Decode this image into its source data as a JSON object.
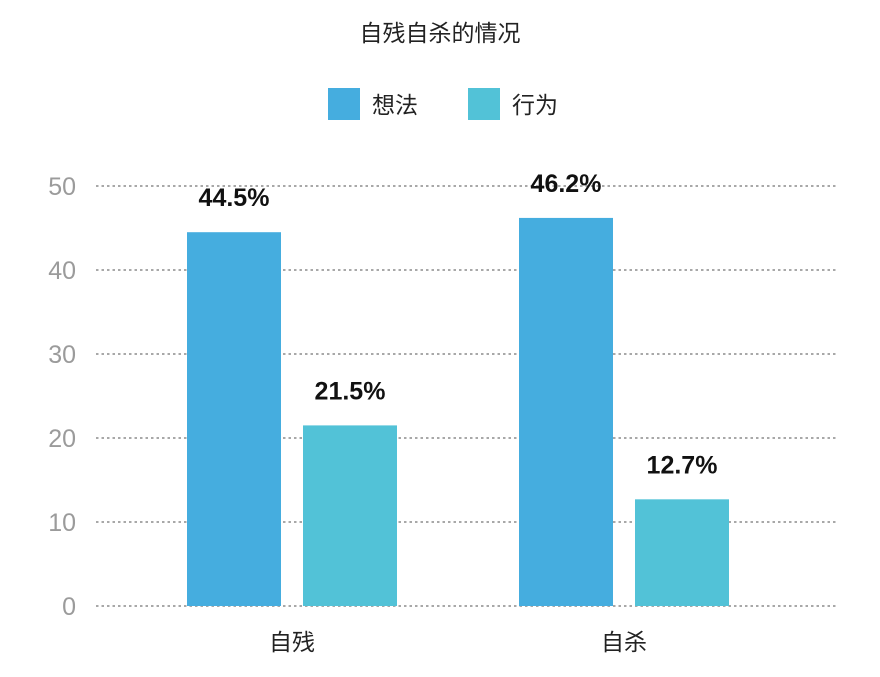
{
  "chart_data": {
    "type": "bar",
    "title": "自残自杀的情况",
    "xlabel": "",
    "ylabel": "",
    "categories": [
      "自残",
      "自杀"
    ],
    "series": [
      {
        "name": "想法",
        "color": "#45ADDF",
        "values": [
          44.5,
          46.2
        ],
        "labels": [
          "44.5%",
          "46.2%"
        ]
      },
      {
        "name": "行为",
        "color": "#52C2D7",
        "values": [
          21.5,
          12.7
        ],
        "labels": [
          "21.5%",
          "12.7%"
        ]
      }
    ],
    "ylim": [
      0,
      50
    ],
    "yticks": [
      "0",
      "10",
      "20",
      "30",
      "40",
      "50"
    ],
    "grid": true,
    "grid_style": "dotted",
    "legend_position": "top-center"
  }
}
